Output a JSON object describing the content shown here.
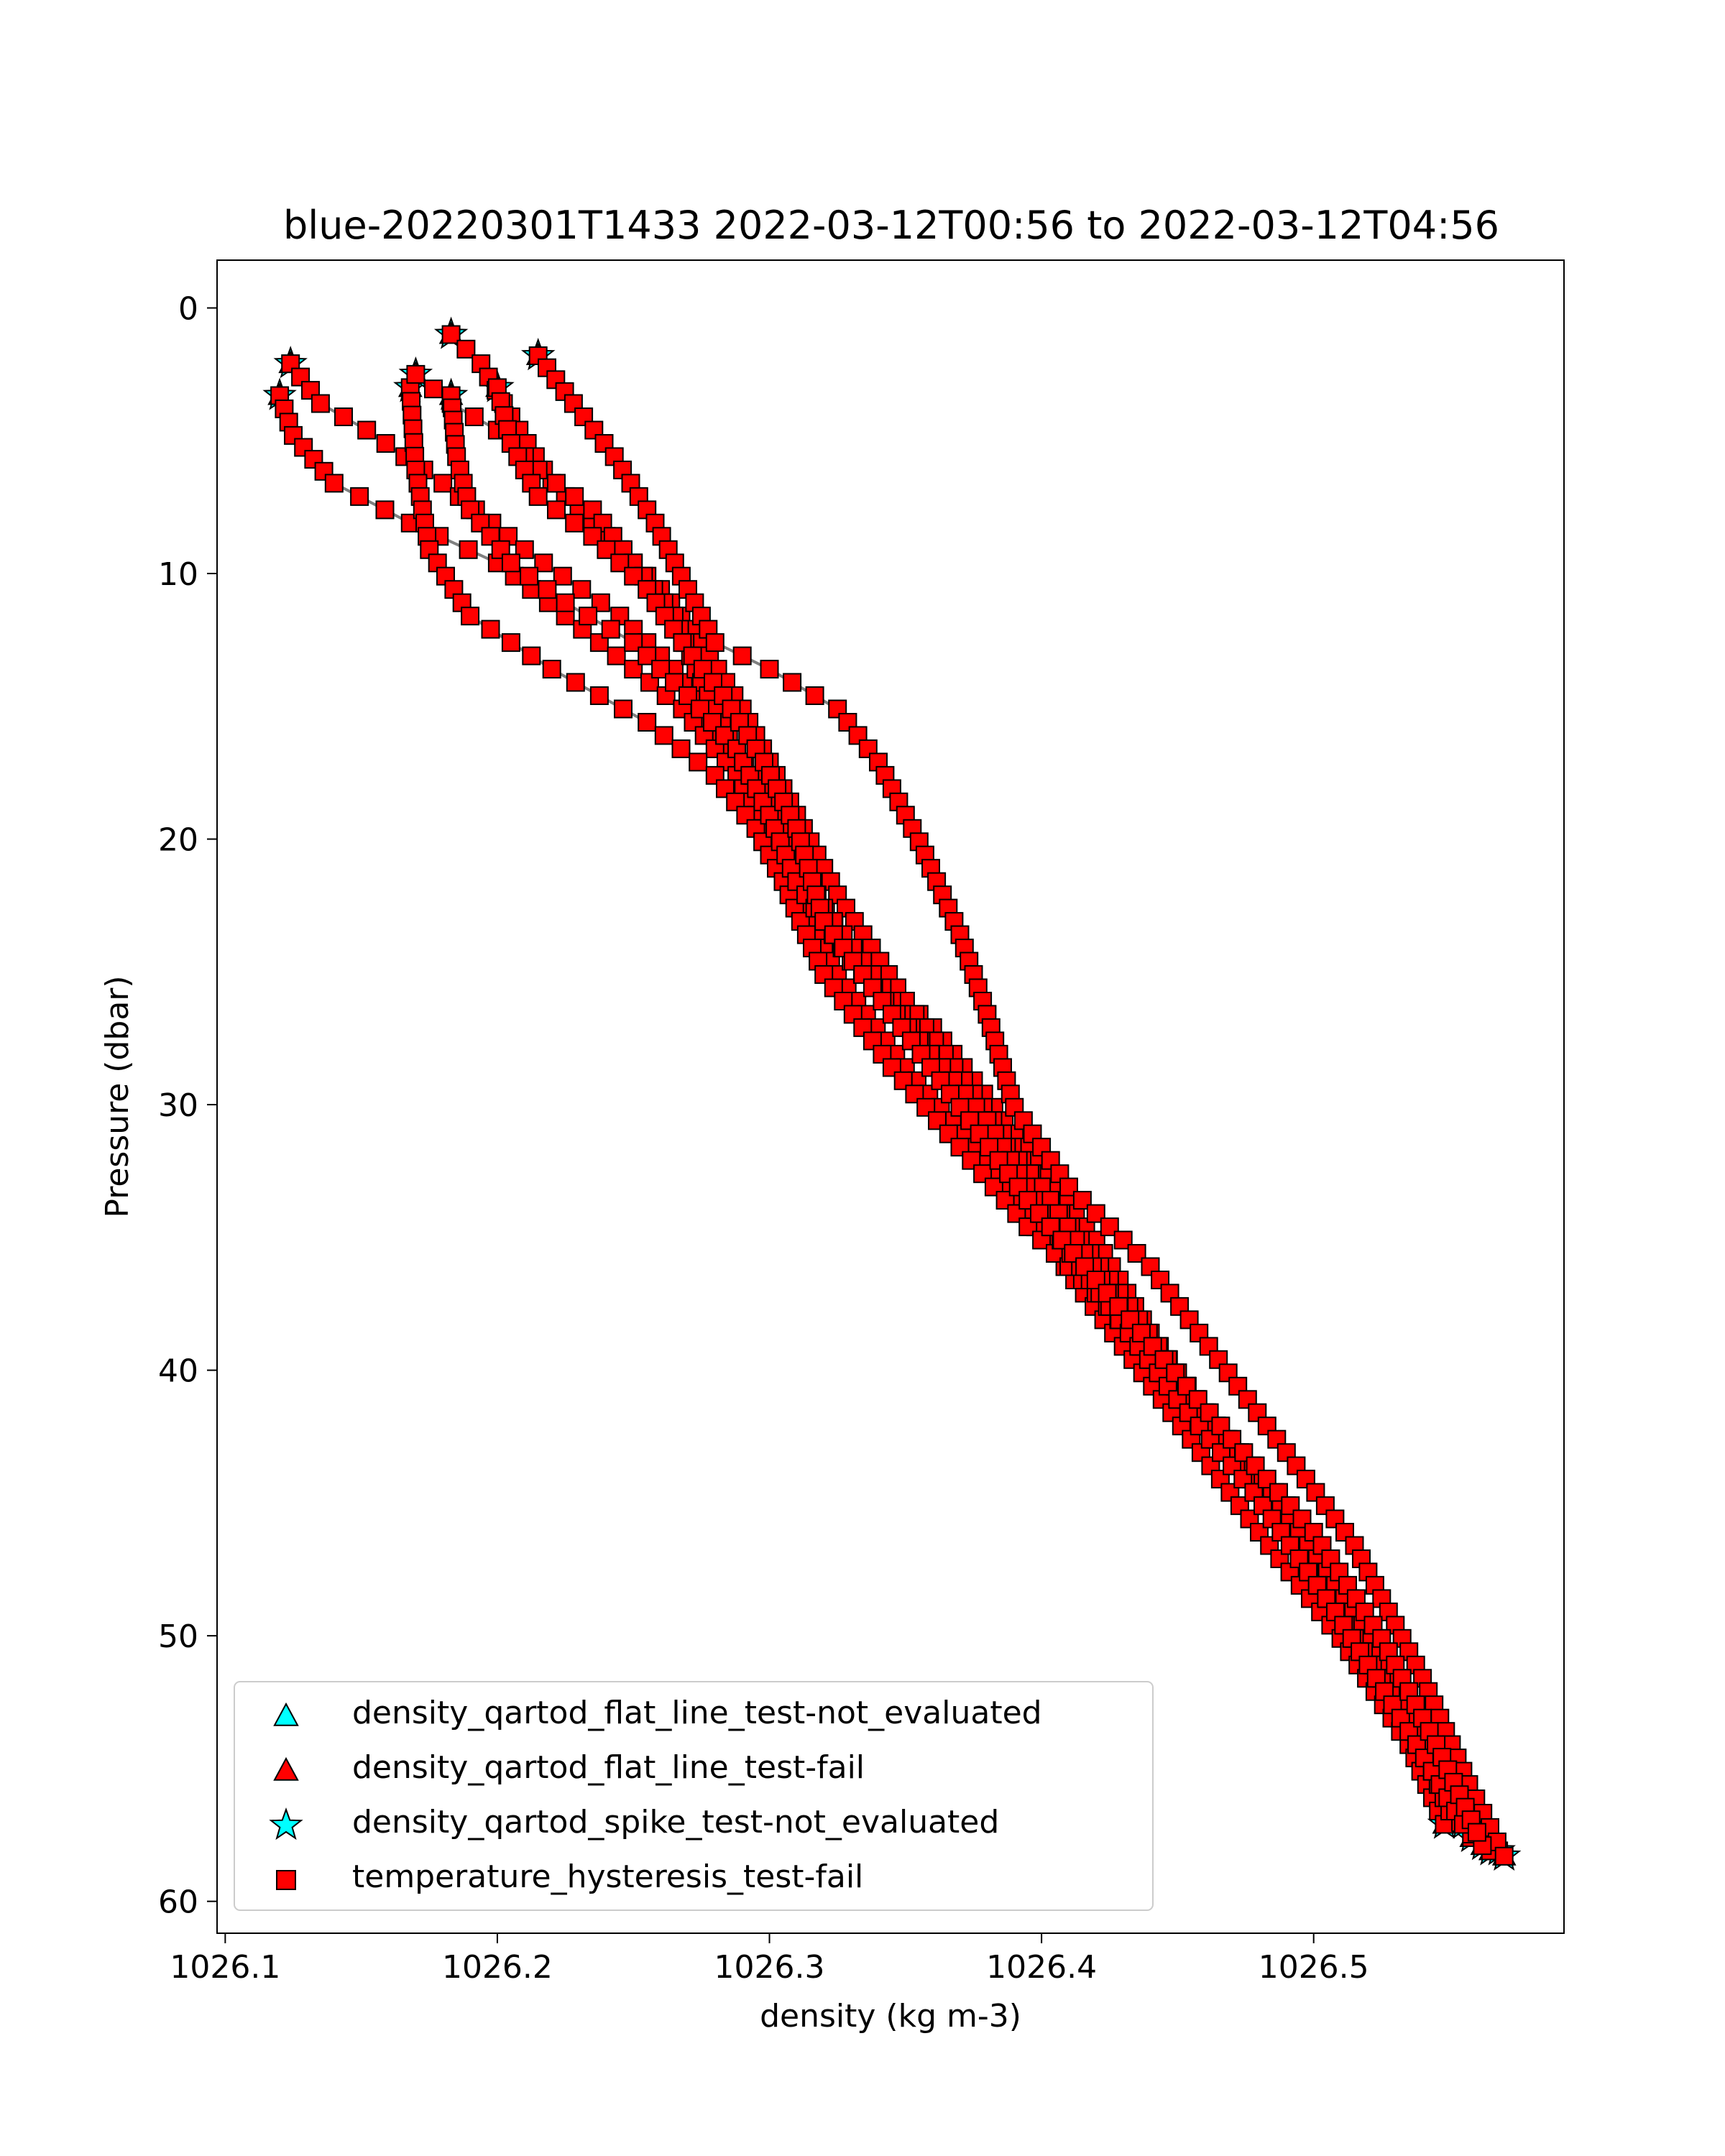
{
  "chart_data": {
    "type": "scatter",
    "title": "blue-20220301T1433 2022-03-12T00:56 to 2022-03-12T04:56",
    "xlabel": "density (kg m-3)",
    "ylabel": "Pressure (dbar)",
    "xlim": [
      1026.097,
      1026.592
    ],
    "ylim": [
      61.2,
      -1.8
    ],
    "y_inverted": true,
    "x_ticks": [
      1026.1,
      1026.2,
      1026.3,
      1026.4,
      1026.5
    ],
    "x_tick_labels": [
      "1026.1",
      "1026.2",
      "1026.3",
      "1026.4",
      "1026.5"
    ],
    "y_ticks": [
      0,
      10,
      20,
      30,
      40,
      50,
      60
    ],
    "y_tick_labels": [
      "0",
      "10",
      "20",
      "30",
      "40",
      "50",
      "60"
    ],
    "grid": false,
    "legend_position": "lower-left",
    "legend": [
      {
        "label": "density_qartod_flat_line_test-not_evaluated",
        "marker": "triangle",
        "color": "#00ffff"
      },
      {
        "label": "density_qartod_flat_line_test-fail",
        "marker": "triangle",
        "color": "#ff0000"
      },
      {
        "label": "density_qartod_spike_test-not_evaluated",
        "marker": "star",
        "color": "#00ffff"
      },
      {
        "label": "temperature_hysteresis_test-fail",
        "marker": "square",
        "color": "#ff0000"
      }
    ],
    "profiles": [
      {
        "start": [
          1026.124,
          2.1
        ],
        "waypoints": [
          [
            1026.124,
            2.1
          ],
          [
            1026.135,
            3.6
          ],
          [
            1026.152,
            4.6
          ],
          [
            1026.18,
            6.6
          ],
          [
            1026.21,
            9.1
          ],
          [
            1026.245,
            11.6
          ],
          [
            1026.265,
            13.6
          ],
          [
            1026.285,
            16.6
          ],
          [
            1026.305,
            20.1
          ],
          [
            1026.33,
            24.1
          ],
          [
            1026.36,
            27.1
          ],
          [
            1026.39,
            31.1
          ],
          [
            1026.42,
            35.1
          ],
          [
            1026.44,
            38.6
          ],
          [
            1026.46,
            41.6
          ],
          [
            1026.49,
            45.1
          ],
          [
            1026.52,
            49.6
          ],
          [
            1026.545,
            54.1
          ],
          [
            1026.56,
            57.1
          ],
          [
            1026.568,
            58.1
          ]
        ]
      },
      {
        "start": [
          1026.12,
          3.3
        ],
        "waypoints": [
          [
            1026.12,
            3.3
          ],
          [
            1026.125,
            4.8
          ],
          [
            1026.14,
            6.6
          ],
          [
            1026.168,
            8.1
          ],
          [
            1026.2,
            9.6
          ],
          [
            1026.225,
            11.6
          ],
          [
            1026.25,
            13.6
          ],
          [
            1026.268,
            15.1
          ],
          [
            1026.288,
            17.6
          ],
          [
            1026.305,
            21.1
          ],
          [
            1026.325,
            25.1
          ],
          [
            1026.35,
            28.6
          ],
          [
            1026.38,
            32.1
          ],
          [
            1026.405,
            35.6
          ],
          [
            1026.43,
            39.1
          ],
          [
            1026.455,
            42.6
          ],
          [
            1026.48,
            46.1
          ],
          [
            1026.51,
            50.1
          ],
          [
            1026.535,
            54.1
          ],
          [
            1026.548,
            57.1
          ]
        ]
      },
      {
        "start": [
          1026.168,
          3.0
        ],
        "waypoints": [
          [
            1026.168,
            3.0
          ],
          [
            1026.17,
            6.1
          ],
          [
            1026.175,
            9.1
          ],
          [
            1026.19,
            11.6
          ],
          [
            1026.22,
            13.6
          ],
          [
            1026.255,
            15.6
          ],
          [
            1026.28,
            17.6
          ],
          [
            1026.295,
            19.6
          ],
          [
            1026.305,
            21.6
          ],
          [
            1026.32,
            25.1
          ],
          [
            1026.345,
            28.6
          ],
          [
            1026.37,
            31.6
          ],
          [
            1026.395,
            34.6
          ],
          [
            1026.42,
            37.1
          ],
          [
            1026.445,
            40.1
          ],
          [
            1026.47,
            43.1
          ],
          [
            1026.495,
            46.6
          ],
          [
            1026.525,
            51.1
          ],
          [
            1026.545,
            55.1
          ],
          [
            1026.558,
            57.6
          ]
        ]
      },
      {
        "start": [
          1026.183,
          1.0
        ],
        "waypoints": [
          [
            1026.183,
            1.0
          ],
          [
            1026.194,
            2.1
          ],
          [
            1026.205,
            4.1
          ],
          [
            1026.22,
            6.6
          ],
          [
            1026.24,
            8.6
          ],
          [
            1026.26,
            10.6
          ],
          [
            1026.275,
            12.6
          ],
          [
            1026.29,
            15.1
          ],
          [
            1026.305,
            18.1
          ],
          [
            1026.325,
            22.1
          ],
          [
            1026.35,
            26.1
          ],
          [
            1026.375,
            29.6
          ],
          [
            1026.4,
            33.1
          ],
          [
            1026.425,
            36.6
          ],
          [
            1026.45,
            40.1
          ],
          [
            1026.475,
            43.6
          ],
          [
            1026.505,
            47.6
          ],
          [
            1026.53,
            52.1
          ],
          [
            1026.55,
            55.6
          ],
          [
            1026.565,
            58.1
          ]
        ]
      },
      {
        "start": [
          1026.215,
          1.8
        ],
        "waypoints": [
          [
            1026.215,
            1.8
          ],
          [
            1026.228,
            3.6
          ],
          [
            1026.243,
            5.6
          ],
          [
            1026.258,
            8.1
          ],
          [
            1026.27,
            10.6
          ],
          [
            1026.28,
            12.6
          ],
          [
            1026.3,
            13.6
          ],
          [
            1026.325,
            15.1
          ],
          [
            1026.34,
            17.1
          ],
          [
            1026.355,
            20.1
          ],
          [
            1026.37,
            23.6
          ],
          [
            1026.38,
            26.6
          ],
          [
            1026.39,
            30.1
          ],
          [
            1026.41,
            33.1
          ],
          [
            1026.44,
            36.1
          ],
          [
            1026.465,
            39.6
          ],
          [
            1026.49,
            43.1
          ],
          [
            1026.515,
            46.6
          ],
          [
            1026.54,
            51.6
          ],
          [
            1026.557,
            55.6
          ],
          [
            1026.57,
            58.3
          ]
        ]
      },
      {
        "start": [
          1026.17,
          2.5
        ],
        "waypoints": [
          [
            1026.17,
            2.5
          ],
          [
            1026.183,
            3.6
          ],
          [
            1026.2,
            4.6
          ],
          [
            1026.215,
            6.1
          ],
          [
            1026.235,
            7.6
          ],
          [
            1026.25,
            9.6
          ],
          [
            1026.265,
            11.6
          ],
          [
            1026.275,
            14.1
          ],
          [
            1026.285,
            16.1
          ],
          [
            1026.3,
            18.6
          ],
          [
            1026.32,
            22.6
          ],
          [
            1026.345,
            26.1
          ],
          [
            1026.37,
            29.6
          ],
          [
            1026.4,
            33.1
          ],
          [
            1026.425,
            37.1
          ],
          [
            1026.45,
            40.6
          ],
          [
            1026.475,
            44.1
          ],
          [
            1026.505,
            48.6
          ],
          [
            1026.535,
            53.1
          ],
          [
            1026.55,
            56.6
          ],
          [
            1026.562,
            57.9
          ]
        ]
      },
      {
        "start": [
          1026.183,
          3.3
        ],
        "waypoints": [
          [
            1026.183,
            3.3
          ],
          [
            1026.185,
            5.6
          ],
          [
            1026.19,
            7.6
          ],
          [
            1026.205,
            9.6
          ],
          [
            1026.225,
            11.1
          ],
          [
            1026.25,
            12.6
          ],
          [
            1026.27,
            14.6
          ],
          [
            1026.288,
            16.6
          ],
          [
            1026.3,
            19.1
          ],
          [
            1026.31,
            21.6
          ],
          [
            1026.33,
            24.6
          ],
          [
            1026.355,
            27.6
          ],
          [
            1026.38,
            30.6
          ],
          [
            1026.4,
            34.1
          ],
          [
            1026.425,
            37.6
          ],
          [
            1026.45,
            41.1
          ],
          [
            1026.478,
            44.6
          ],
          [
            1026.508,
            49.1
          ],
          [
            1026.535,
            53.6
          ],
          [
            1026.555,
            57.1
          ]
        ]
      },
      {
        "start": [
          1026.2,
          3.0
        ],
        "waypoints": [
          [
            1026.2,
            3.0
          ],
          [
            1026.205,
            5.1
          ],
          [
            1026.215,
            7.1
          ],
          [
            1026.235,
            8.6
          ],
          [
            1026.255,
            10.6
          ],
          [
            1026.268,
            12.6
          ],
          [
            1026.283,
            14.6
          ],
          [
            1026.298,
            17.1
          ],
          [
            1026.31,
            19.6
          ],
          [
            1026.32,
            23.1
          ],
          [
            1026.345,
            26.6
          ],
          [
            1026.37,
            30.1
          ],
          [
            1026.395,
            33.6
          ],
          [
            1026.42,
            36.6
          ],
          [
            1026.445,
            39.6
          ],
          [
            1026.47,
            42.6
          ],
          [
            1026.5,
            46.1
          ],
          [
            1026.525,
            50.1
          ],
          [
            1026.545,
            54.1
          ],
          [
            1026.56,
            57.4
          ]
        ]
      }
    ]
  }
}
